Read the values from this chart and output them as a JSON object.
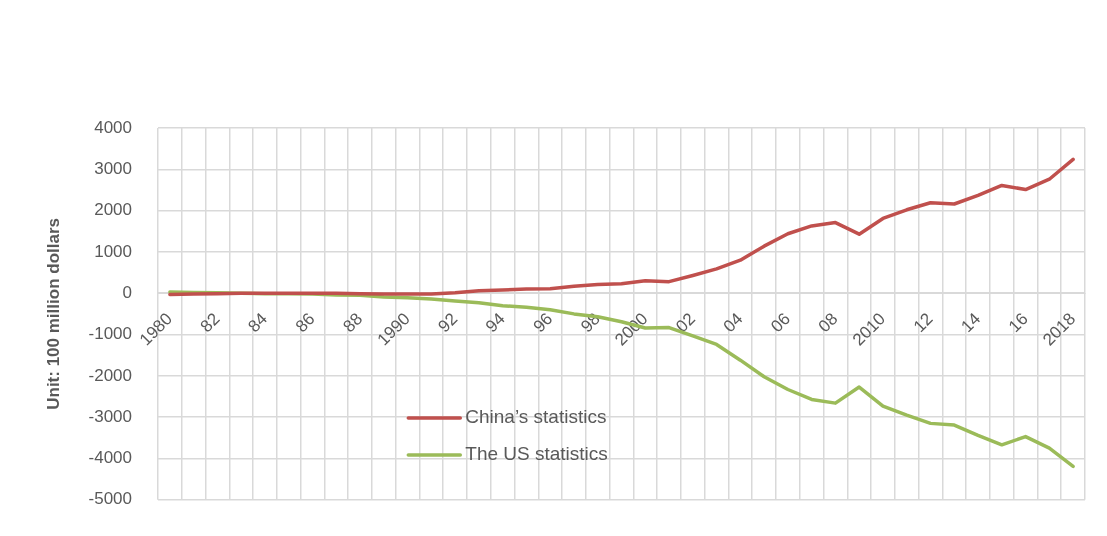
{
  "chart_data": {
    "type": "line",
    "ylabel": "Unit: 100 million dollars",
    "categories": [
      "1980",
      null,
      "82",
      null,
      "84",
      null,
      "86",
      null,
      "88",
      null,
      "1990",
      null,
      "92",
      null,
      "94",
      null,
      "96",
      null,
      "98",
      null,
      "2000",
      null,
      "02",
      null,
      "04",
      null,
      "06",
      null,
      "08",
      null,
      "2010",
      null,
      "12",
      null,
      "14",
      null,
      "16",
      null,
      "2018"
    ],
    "series": [
      {
        "name": "China’s statistics",
        "color": "#c0504d",
        "values": [
          -30,
          -20,
          -10,
          0,
          0,
          0,
          0,
          0,
          -10,
          -20,
          -20,
          -20,
          10,
          60,
          80,
          100,
          110,
          170,
          210,
          230,
          300,
          280,
          430,
          590,
          800,
          1140,
          1440,
          1630,
          1710,
          1430,
          1810,
          2020,
          2190,
          2160,
          2370,
          2610,
          2510,
          2760,
          3240
        ]
      },
      {
        "name": "The US statistics",
        "color": "#9bbb59",
        "values": [
          30,
          20,
          10,
          0,
          -10,
          -10,
          -20,
          -40,
          -50,
          -90,
          -110,
          -140,
          -190,
          -230,
          -300,
          -340,
          -400,
          -500,
          -570,
          -690,
          -840,
          -830,
          -1030,
          -1240,
          -1620,
          -2020,
          -2330,
          -2570,
          -2660,
          -2270,
          -2730,
          -2950,
          -3150,
          -3190,
          -3440,
          -3670,
          -3470,
          -3750,
          -4190
        ]
      }
    ],
    "ylim": [
      -5000,
      4000
    ],
    "yticks": [
      -5000,
      -4000,
      -3000,
      -2000,
      -1000,
      0,
      1000,
      2000,
      3000,
      4000
    ],
    "grid": true,
    "legend": "bottom",
    "marker": "none",
    "line_style": "solid"
  }
}
